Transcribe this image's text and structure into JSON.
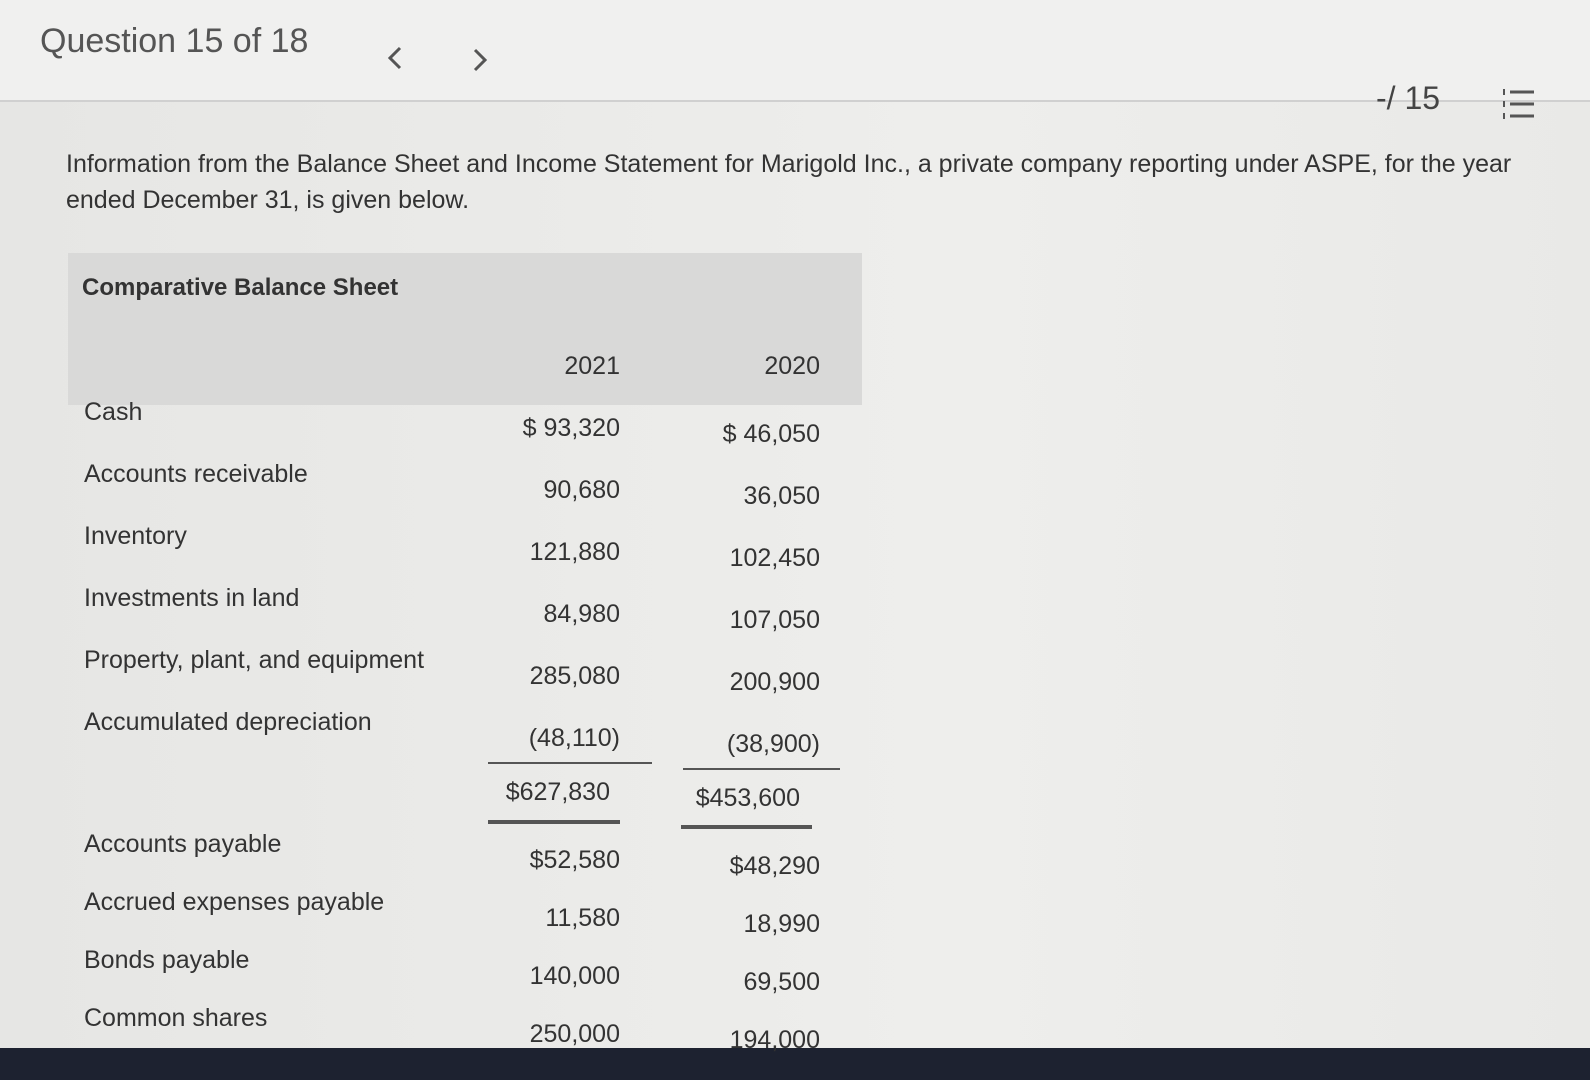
{
  "header": {
    "question": "Question 15 of 18",
    "score": "-/ 15"
  },
  "intro": "Information from the Balance Sheet and Income Statement for Marigold Inc., a private company reporting under ASPE, for the year ended December 31, is given below.",
  "table": {
    "title": "Comparative Balance Sheet",
    "columns": [
      "2021",
      "2020"
    ],
    "assets": [
      [
        "Cash",
        "$ 93,320",
        "$ 46,050"
      ],
      [
        "Accounts receivable",
        "90,680",
        "36,050"
      ],
      [
        "Inventory",
        "121,880",
        "102,450"
      ],
      [
        "Investments in land",
        "84,980",
        "107,050"
      ],
      [
        "Property, plant, and equipment",
        "285,080",
        "200,900"
      ],
      [
        "Accumulated depreciation",
        "(48,110)",
        "(38,900)"
      ]
    ],
    "total": [
      "$627,830",
      "$453,600"
    ],
    "liabilities": [
      [
        "Accounts payable",
        "$52,580",
        "$48,290"
      ],
      [
        "Accrued expenses payable",
        "11,580",
        "18,990"
      ],
      [
        "Bonds payable",
        "140,000",
        "69,500"
      ],
      [
        "Common shares",
        "250,000",
        "194,000"
      ]
    ]
  }
}
